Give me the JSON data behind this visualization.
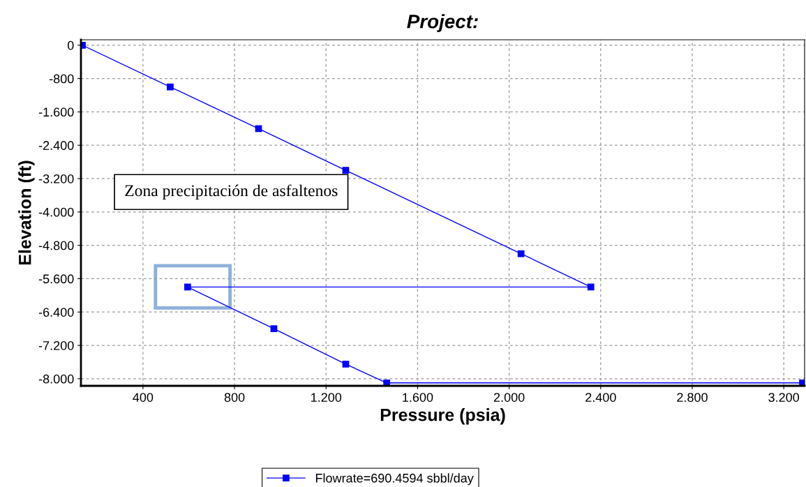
{
  "chart_data": {
    "type": "line",
    "title": "Project:",
    "xlabel": "Pressure (psia)",
    "ylabel": "Elevation (ft)",
    "series": [
      {
        "name": "Flowrate=690.4594 sbbl/day",
        "color": "#0000ff",
        "x": [
          135,
          519,
          905,
          1286,
          2052,
          2357,
          595,
          972,
          1286,
          1465,
          3282
        ],
        "values": [
          0,
          -1000,
          -2000,
          -3000,
          -5000,
          -5800,
          -5800,
          -6800,
          -7650,
          -8100,
          -8100
        ]
      }
    ],
    "xlim": [
      129,
      3291
    ],
    "ylim": [
      -8170,
      130
    ],
    "xticks": [
      400,
      800,
      {
        "value": 1200,
        "label": "1.200"
      },
      {
        "value": 1600,
        "label": "1.600"
      },
      {
        "value": 2000,
        "label": "2.000"
      },
      {
        "value": 2400,
        "label": "2.400"
      },
      {
        "value": 2800,
        "label": "2.800"
      },
      {
        "value": 3200,
        "label": "3.200"
      }
    ],
    "yticks": [
      0,
      {
        "value": -800,
        "label": "-800"
      },
      {
        "value": -1600,
        "label": "-1.600"
      },
      {
        "value": -2400,
        "label": "-2.400"
      },
      {
        "value": -3200,
        "label": "-3.200"
      },
      {
        "value": -4000,
        "label": "-4.000"
      },
      {
        "value": -4800,
        "label": "-4.800"
      },
      {
        "value": -5600,
        "label": "-5.600"
      },
      {
        "value": -6400,
        "label": "-6.400"
      },
      {
        "value": -7200,
        "label": "-7.200"
      },
      {
        "value": -8000,
        "label": "-8.000"
      }
    ],
    "annotations": [
      "Zona precipitación de asfaltenos"
    ],
    "grid": true,
    "legend": "bottom",
    "marker": "square",
    "line_style": "solid"
  }
}
